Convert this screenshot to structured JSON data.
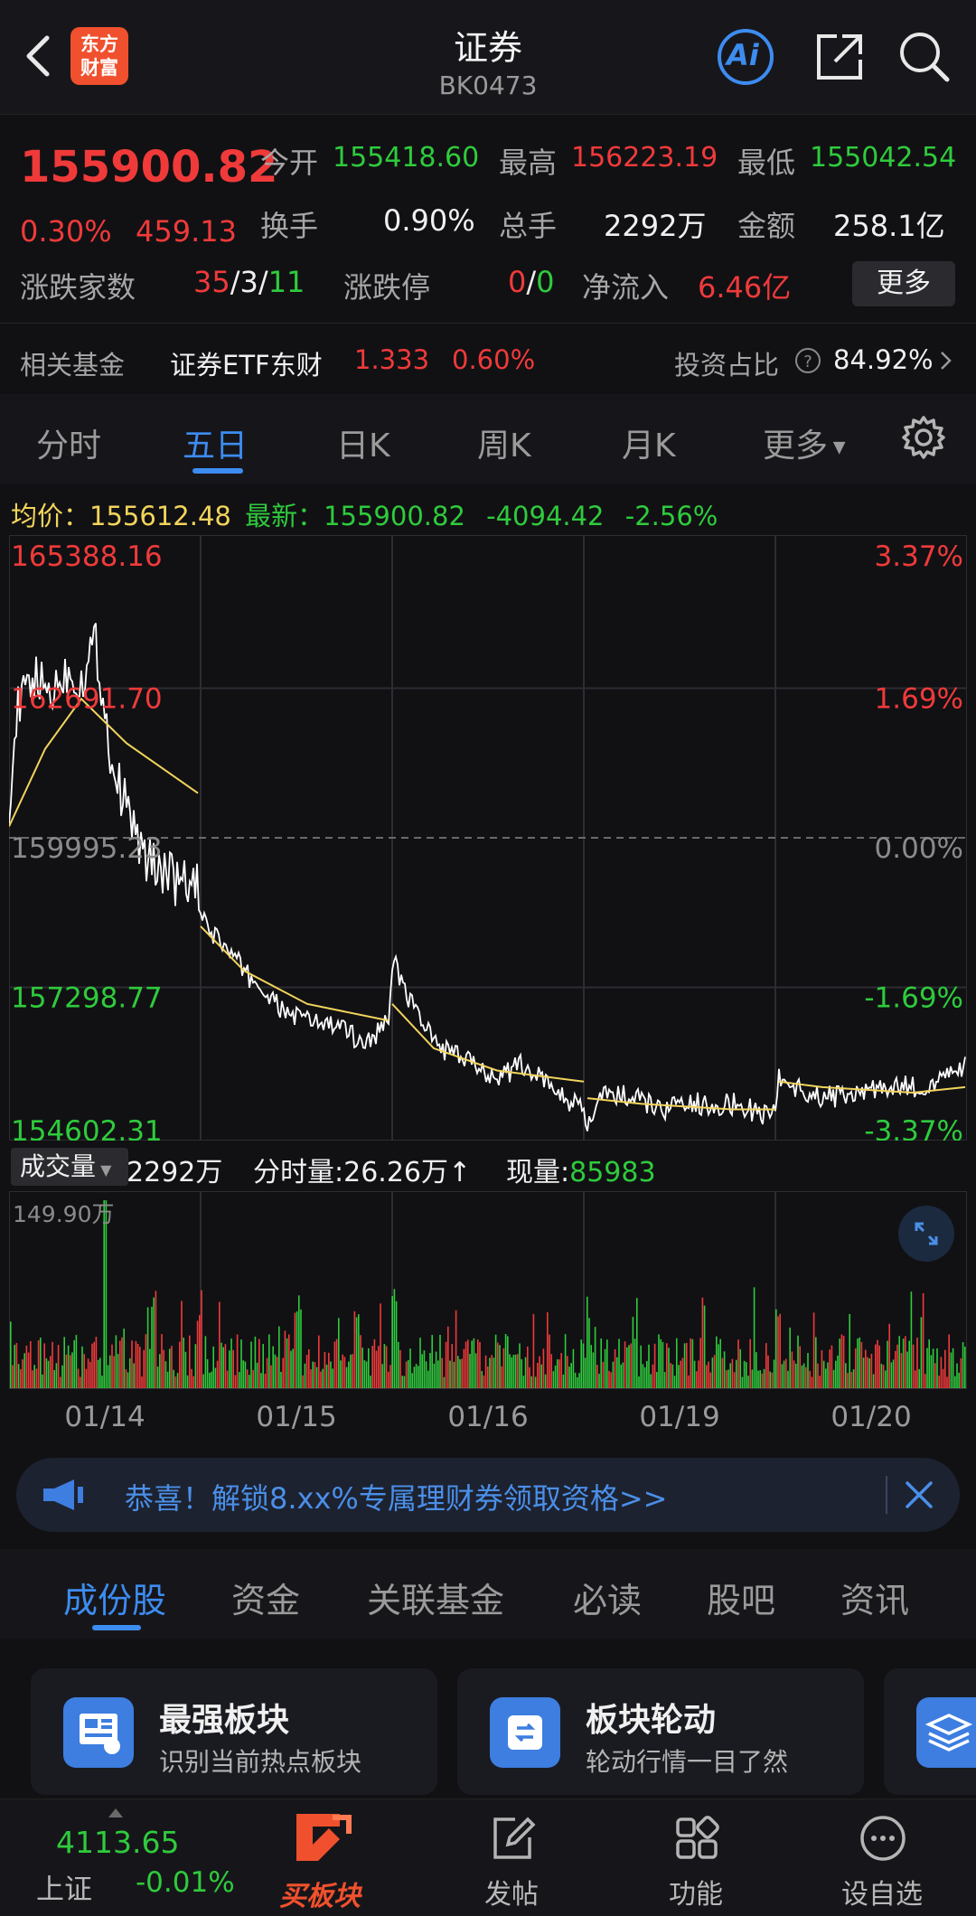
{
  "header": {
    "logo_line1": "东方",
    "logo_line2": "财富",
    "title": "证券",
    "code": "BK0473",
    "ai_label": "Ai"
  },
  "quote": {
    "price": "155900.82",
    "change_pct": "0.30%",
    "change_val": "459.13",
    "open_label": "今开",
    "open": "155418.60",
    "high_label": "最高",
    "high": "156223.19",
    "low_label": "最低",
    "low": "155042.54",
    "turnover_label": "换手",
    "turnover": "0.90%",
    "volume_label": "总手",
    "volume": "2292万",
    "amount_label": "金额",
    "amount": "258.1亿",
    "updown_label": "涨跌家数",
    "up": "35",
    "flat": "3",
    "down": "11",
    "limit_label": "涨跌停",
    "limit_up": "0",
    "limit_down": "0",
    "inflow_label": "净流入",
    "inflow": "6.46亿",
    "more": "更多",
    "fund_label": "相关基金",
    "fund_name": "证券ETF东财",
    "fund_price": "1.333",
    "fund_pct": "0.60%",
    "ratio_label": "投资占比",
    "ratio": "84.92%"
  },
  "tabs": [
    "分时",
    "五日",
    "日K",
    "周K",
    "月K",
    "更多"
  ],
  "info": {
    "avg_label": "均价：",
    "avg": "155612.48",
    "latest_label": "最新：",
    "latest": "155900.82",
    "chg": "-4094.42",
    "chg_pct": "-2.56%"
  },
  "chart_data": {
    "type": "line",
    "y_labels_left": [
      "165388.16",
      "162691.70",
      "159995.23",
      "157298.77",
      "154602.31"
    ],
    "y_labels_right": [
      "3.37%",
      "1.69%",
      "0.00%",
      "-1.69%",
      "-3.37%"
    ],
    "ylim": [
      154602.31,
      165388.16
    ],
    "x": [
      "01/14",
      "01/15",
      "01/16",
      "01/19",
      "01/20"
    ],
    "colors": {
      "price": "#ffffff",
      "avg": "#f2d45b",
      "up": "#f03a3a",
      "down": "#2fcb3c"
    }
  },
  "volume": {
    "btn": "成交量",
    "total": "2292万",
    "period_label": "分时量:",
    "period": "26.26万",
    "now_label": "现量:",
    "now": "85983",
    "max": "149.90万"
  },
  "banner": {
    "text": "恭喜！解锁8.xx%专属理财券领取资格>>"
  },
  "tabs2": [
    "成份股",
    "资金",
    "关联基金",
    "必读",
    "股吧",
    "资讯"
  ],
  "cards": [
    {
      "title": "最强板块",
      "sub": "识别当前热点板块"
    },
    {
      "title": "板块轮动",
      "sub": "轮动行情一目了然"
    }
  ],
  "bottom": {
    "index_val": "4113.65",
    "index_name": "上证",
    "index_pct": "-0.01%",
    "buy": "买板块",
    "post": "发帖",
    "func": "功能",
    "watch": "设自选"
  }
}
